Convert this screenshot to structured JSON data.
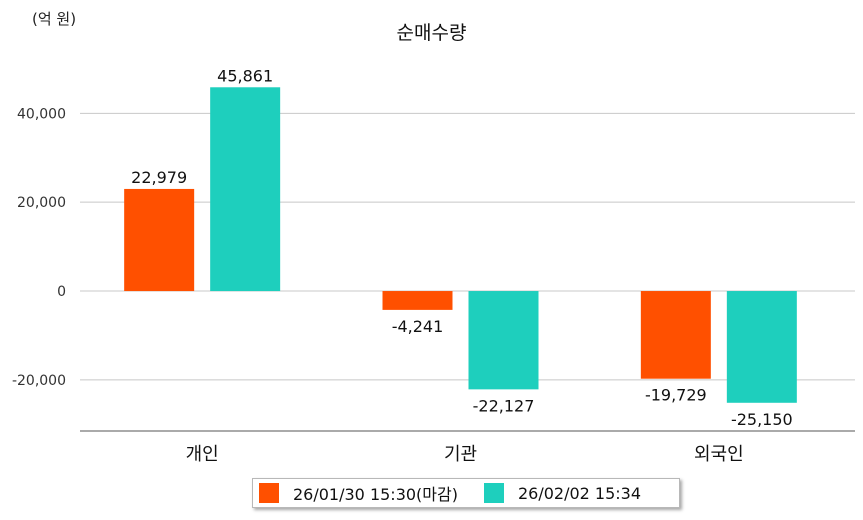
{
  "chart_data": {
    "type": "bar",
    "title": "순매수량",
    "unit_label": "(억 원)",
    "categories": [
      "개인",
      "기관",
      "외국인"
    ],
    "series": [
      {
        "name": "26/01/30 15:30(마감)",
        "color": "#ff5000",
        "values": [
          22979,
          -4241,
          -19729
        ],
        "labels": [
          "22,979",
          "-4,241",
          "-19,729"
        ]
      },
      {
        "name": "26/02/02 15:34",
        "color": "#1ecfbd",
        "values": [
          45861,
          -22127,
          -25150
        ],
        "labels": [
          "45,861",
          "-22,127",
          "-25,150"
        ]
      }
    ],
    "yticks": [
      40000,
      20000,
      0,
      -20000
    ],
    "ytick_labels": [
      "40,000",
      "20,000",
      "0",
      "-20,000"
    ],
    "ylim": [
      -31500,
      52000
    ],
    "grid": true,
    "legend_position": "bottom"
  }
}
